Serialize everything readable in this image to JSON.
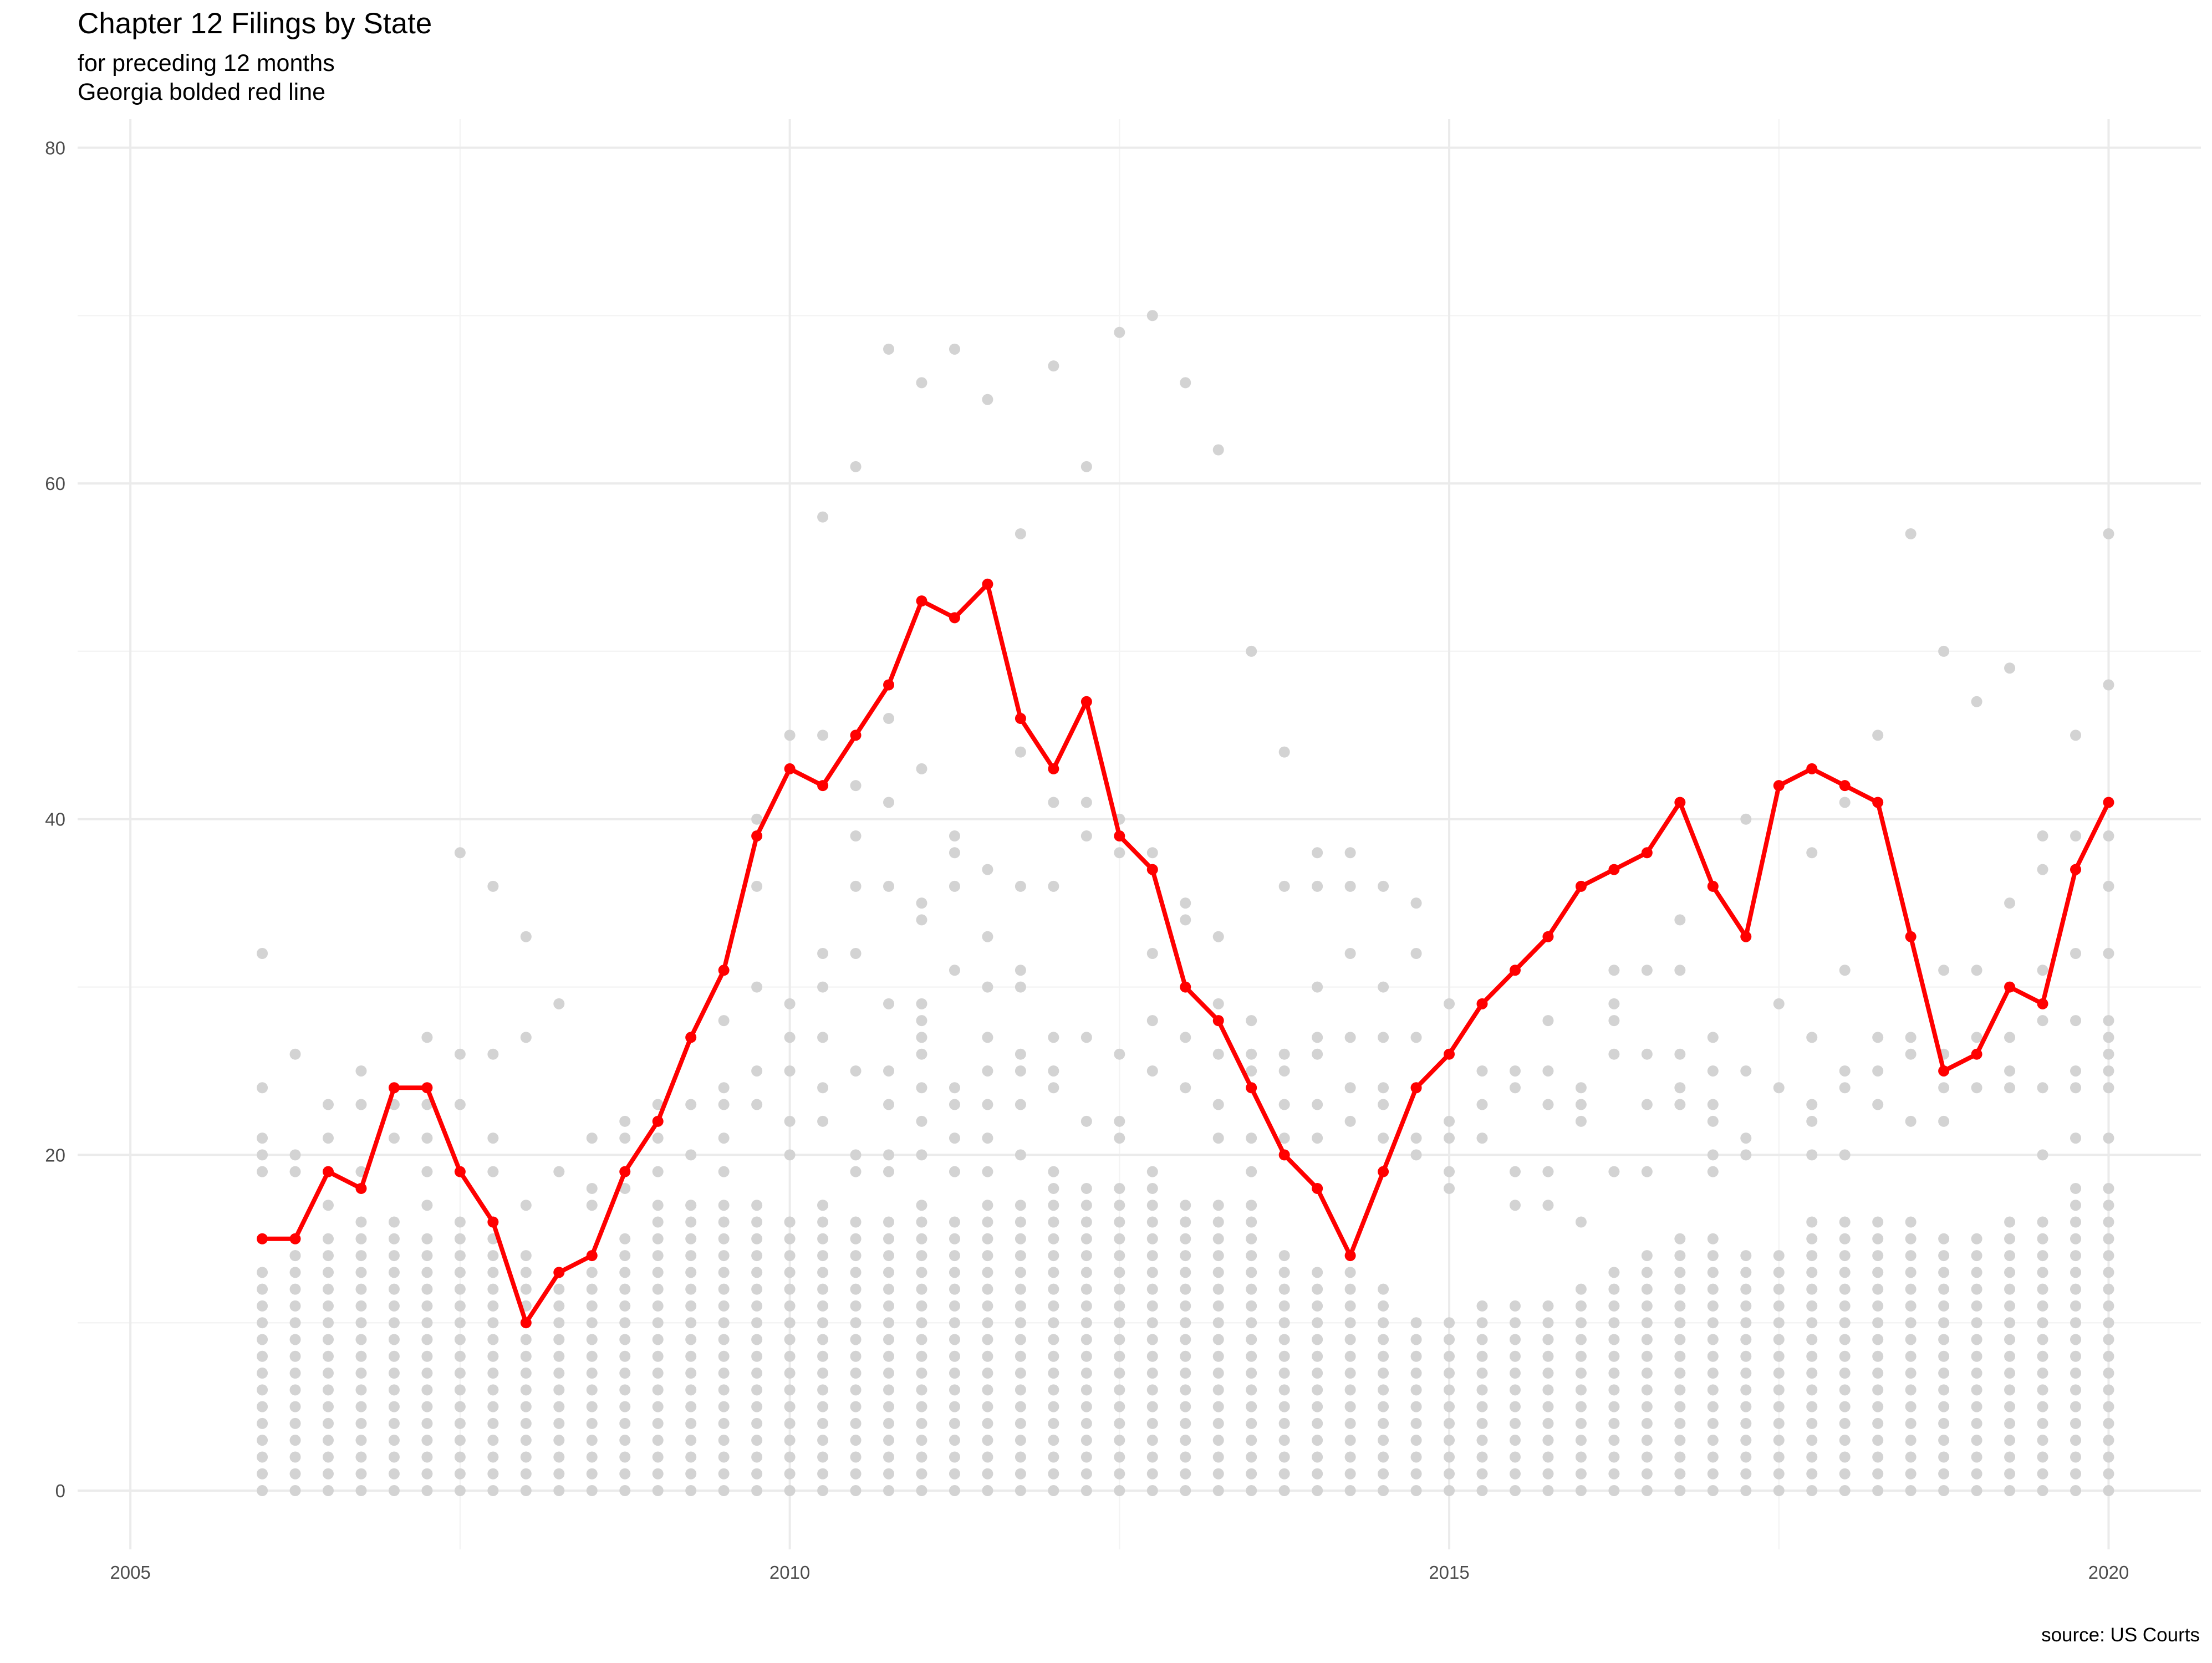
{
  "chart_data": {
    "type": "scatter",
    "title": "Chapter 12 Filings by State",
    "subtitle": [
      "for preceding 12 months",
      "Georgia bolded red line"
    ],
    "caption": "source: US Courts",
    "xlabel": "",
    "ylabel": "",
    "xlim": [
      2004.6,
      2020.7
    ],
    "ylim": [
      -3.5,
      81.7
    ],
    "x_ticks": [
      2005,
      2010,
      2015,
      2020
    ],
    "y_ticks": [
      0,
      20,
      40,
      60,
      80
    ],
    "grid": true,
    "colors": {
      "highlight": "#ff0000",
      "other_states": "#d3d3d3",
      "grid_major": "#ebebeb",
      "grid_minor": "#f4f4f4"
    },
    "quarters": [
      2006.0,
      2006.25,
      2006.5,
      2006.75,
      2007.0,
      2007.25,
      2007.5,
      2007.75,
      2008.0,
      2008.25,
      2008.5,
      2008.75,
      2009.0,
      2009.25,
      2009.5,
      2009.75,
      2010.0,
      2010.25,
      2010.5,
      2010.75,
      2011.0,
      2011.25,
      2011.5,
      2011.75,
      2012.0,
      2012.25,
      2012.5,
      2012.75,
      2013.0,
      2013.25,
      2013.5,
      2013.75,
      2014.0,
      2014.25,
      2014.5,
      2014.75,
      2015.0,
      2015.25,
      2015.5,
      2015.75,
      2016.0,
      2016.25,
      2016.5,
      2016.75,
      2017.0,
      2017.25,
      2017.5,
      2017.75,
      2018.0,
      2018.25,
      2018.5,
      2018.75,
      2019.0,
      2019.25,
      2019.5,
      2019.75,
      2020.0
    ],
    "series": [
      {
        "name": "Georgia",
        "type": "line",
        "values": [
          15,
          15,
          19,
          18,
          24,
          24,
          19,
          16,
          10,
          13,
          14,
          19,
          22,
          27,
          31,
          39,
          43,
          42,
          45,
          48,
          53,
          52,
          54,
          46,
          43,
          47,
          39,
          37,
          30,
          28,
          24,
          20,
          18,
          14,
          19,
          24,
          26,
          29,
          31,
          33,
          36,
          37,
          38,
          41,
          36,
          33,
          42,
          43,
          42,
          41,
          33,
          25,
          26,
          30,
          29,
          37,
          41
        ]
      },
      {
        "name": "",
        "type": "scatter",
        "notes": "Other states: for each quarter, the upper values are listed; each column also contains values from 0 up to its dense-stack ceiling.",
        "upper_values": [
          [
            32,
            24,
            21,
            20,
            19
          ],
          [
            26,
            20,
            19,
            14
          ],
          [
            23,
            21,
            19,
            17
          ],
          [
            25,
            23,
            19
          ],
          [
            21,
            23
          ],
          [
            27,
            23,
            21,
            19,
            17
          ],
          [
            38,
            26,
            23
          ],
          [
            36,
            26,
            21,
            19
          ],
          [
            33,
            27,
            17
          ],
          [
            29,
            19
          ],
          [
            21,
            18,
            17
          ],
          [
            22,
            21,
            18
          ],
          [
            23,
            21,
            19
          ],
          [
            23,
            20,
            17
          ],
          [
            28,
            24,
            23,
            21,
            19
          ],
          [
            40,
            36,
            30,
            25,
            23
          ],
          [
            45,
            29,
            27,
            25,
            22,
            20,
            16
          ],
          [
            58,
            45,
            32,
            30,
            27,
            24,
            22,
            17
          ],
          [
            61,
            42,
            39,
            36,
            32,
            25,
            20,
            19
          ],
          [
            68,
            46,
            41,
            36,
            29,
            25,
            23,
            20,
            19
          ],
          [
            66,
            43,
            35,
            34,
            29,
            28,
            27,
            26,
            24,
            22,
            20
          ],
          [
            68,
            39,
            38,
            36,
            31,
            24,
            23,
            21,
            19
          ],
          [
            65,
            37,
            33,
            30,
            27,
            25,
            23,
            21,
            19
          ],
          [
            57,
            44,
            36,
            31,
            30,
            26,
            25,
            23,
            20
          ],
          [
            67,
            41,
            36,
            27,
            25,
            24
          ],
          [
            61,
            41,
            39,
            27,
            22
          ],
          [
            69,
            40,
            38,
            26,
            22,
            21
          ],
          [
            70,
            38,
            32,
            28,
            25,
            19
          ],
          [
            66,
            35,
            34,
            27,
            24
          ],
          [
            62,
            33,
            29,
            26,
            23,
            21
          ],
          [
            50,
            28,
            26,
            25,
            21,
            19,
            17
          ],
          [
            44,
            36,
            26,
            25,
            23,
            21
          ],
          [
            38,
            36,
            30,
            27,
            26,
            23,
            21
          ],
          [
            38,
            36,
            32,
            27,
            24,
            22
          ],
          [
            36,
            30,
            27,
            24,
            23,
            21
          ],
          [
            35,
            32,
            27,
            24,
            21,
            20
          ],
          [
            29,
            22,
            21,
            19,
            18
          ],
          [
            25,
            23,
            21
          ],
          [
            25,
            24,
            19,
            17
          ],
          [
            28,
            25,
            23,
            19,
            17
          ],
          [
            24,
            23,
            22,
            16
          ],
          [
            31,
            29,
            28,
            26,
            19
          ],
          [
            31,
            26,
            23,
            19
          ],
          [
            34,
            31,
            26,
            24,
            23
          ],
          [
            36,
            27,
            25,
            23,
            22,
            20,
            19
          ],
          [
            40,
            25,
            21,
            20
          ],
          [
            29,
            24
          ],
          [
            38,
            27,
            23,
            22,
            20
          ],
          [
            41,
            31,
            25,
            24,
            20
          ],
          [
            45,
            27,
            25,
            23
          ],
          [
            57,
            27,
            26,
            22
          ],
          [
            50,
            31,
            26,
            24,
            22
          ],
          [
            47,
            31,
            27,
            24
          ],
          [
            49,
            35,
            27,
            25,
            24
          ],
          [
            39,
            37,
            31,
            28,
            24,
            20
          ],
          [
            45,
            39,
            32,
            28,
            25,
            24,
            21
          ],
          [
            57,
            48,
            39,
            36,
            32,
            28,
            27,
            26,
            25,
            24,
            21
          ]
        ],
        "stack_top": [
          13,
          14,
          15,
          16,
          16,
          15,
          16,
          15,
          14,
          13,
          13,
          15,
          17,
          17,
          17,
          17,
          16,
          17,
          16,
          16,
          17,
          16,
          17,
          17,
          19,
          18,
          18,
          18,
          17,
          17,
          16,
          14,
          13,
          13,
          12,
          10,
          10,
          11,
          11,
          11,
          12,
          13,
          14,
          15,
          15,
          14,
          14,
          16,
          16,
          16,
          16,
          15,
          15,
          16,
          16,
          18,
          18
        ]
      }
    ]
  }
}
